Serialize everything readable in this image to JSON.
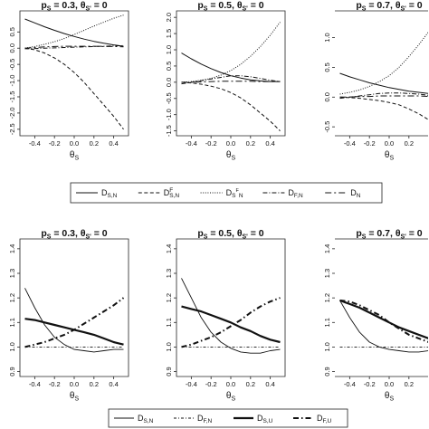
{
  "chart_data": [
    {
      "type": "line",
      "title": "p_S = 0.3, θ_S' = 0",
      "title_html": [
        "p",
        "S",
        " = 0.3, θ",
        "S'",
        " = 0"
      ],
      "xlabel": "θS",
      "xlim": [
        -0.55,
        0.55
      ],
      "ylim": [
        -2.7,
        1.15
      ],
      "xticks": [
        -0.4,
        -0.2,
        0.0,
        0.2,
        0.4
      ],
      "xticklabels": [
        "-0.4",
        "-0.2",
        "0.0",
        "0.2",
        "0.4"
      ],
      "yticks": [
        -2.5,
        -2.0,
        -1.5,
        -1.0,
        -0.5,
        0.0,
        0.5
      ],
      "yticklabels": [
        "-2.5",
        "-2.0",
        "-1.5",
        "-1.0",
        "-0.5",
        "0.0",
        "0.5"
      ],
      "x": [
        -0.5,
        -0.4,
        -0.3,
        -0.2,
        -0.1,
        0.0,
        0.1,
        0.2,
        0.3,
        0.4,
        0.5
      ],
      "series": [
        {
          "name": "D_S,N",
          "style": "solid",
          "values": [
            0.9,
            0.78,
            0.66,
            0.55,
            0.45,
            0.36,
            0.28,
            0.21,
            0.15,
            0.1,
            0.06
          ]
        },
        {
          "name": "D^F_S,N",
          "style": "dashed",
          "values": [
            0.0,
            -0.05,
            -0.15,
            -0.3,
            -0.5,
            -0.75,
            -1.05,
            -1.4,
            -1.75,
            -2.1,
            -2.5
          ]
        },
        {
          "name": "D_S^F_N",
          "style": "dotted",
          "values": [
            0.0,
            0.05,
            0.12,
            0.2,
            0.3,
            0.42,
            0.55,
            0.68,
            0.8,
            0.92,
            1.02
          ]
        },
        {
          "name": "D_F,N",
          "style": "dotdash",
          "values": [
            -0.02,
            -0.01,
            0.0,
            0.01,
            0.02,
            0.03,
            0.04,
            0.05,
            0.06,
            0.07,
            0.08
          ]
        },
        {
          "name": "D_N",
          "style": "longdash",
          "values": [
            0.0,
            0.02,
            0.04,
            0.05,
            0.06,
            0.06,
            0.06,
            0.06,
            0.05,
            0.05,
            0.04
          ]
        }
      ]
    },
    {
      "type": "line",
      "title": "p_S = 0.5, θ_S' = 0",
      "title_html": [
        "p",
        "S",
        " = 0.5, θ",
        "S'",
        " = 0"
      ],
      "xlabel": "θS",
      "xlim": [
        -0.55,
        0.55
      ],
      "ylim": [
        -1.65,
        2.2
      ],
      "xticks": [
        -0.4,
        -0.2,
        0.0,
        0.2,
        0.4
      ],
      "xticklabels": [
        "-0.4",
        "-0.2",
        "0.0",
        "0.2",
        "0.4"
      ],
      "yticks": [
        -1.5,
        -1.0,
        -0.5,
        0.0,
        0.5,
        1.0,
        1.5,
        2.0
      ],
      "yticklabels": [
        "-1.5",
        "-1.0",
        "-0.5",
        "0.0",
        "0.5",
        "1.0",
        "1.5",
        "2.0"
      ],
      "x": [
        -0.5,
        -0.4,
        -0.3,
        -0.2,
        -0.1,
        0.0,
        0.1,
        0.2,
        0.3,
        0.4,
        0.5
      ],
      "series": [
        {
          "name": "D_S,N",
          "style": "solid",
          "values": [
            0.9,
            0.72,
            0.56,
            0.42,
            0.3,
            0.2,
            0.13,
            0.07,
            0.04,
            0.02,
            0.02
          ]
        },
        {
          "name": "D^F_S,N",
          "style": "dashed",
          "values": [
            0.0,
            -0.02,
            -0.06,
            -0.12,
            -0.2,
            -0.32,
            -0.48,
            -0.7,
            -0.95,
            -1.2,
            -1.5
          ]
        },
        {
          "name": "D_S^F_N",
          "style": "dotted",
          "values": [
            0.0,
            0.02,
            0.06,
            0.12,
            0.22,
            0.36,
            0.55,
            0.8,
            1.1,
            1.45,
            1.85
          ]
        },
        {
          "name": "D_F,N",
          "style": "dotdash",
          "values": [
            -0.05,
            0.0,
            0.05,
            0.1,
            0.15,
            0.2,
            0.2,
            0.17,
            0.12,
            0.06,
            0.02
          ]
        },
        {
          "name": "D_N",
          "style": "longdash",
          "values": [
            0.0,
            0.0,
            0.01,
            0.02,
            0.03,
            0.03,
            0.03,
            0.03,
            0.02,
            0.02,
            0.02
          ]
        }
      ]
    },
    {
      "type": "line",
      "title": "p_S = 0.7, θ_S' = 0",
      "title_html": [
        "p",
        "S",
        " = 0.7, θ",
        "S'",
        " = 0"
      ],
      "xlabel": "θS",
      "xlim": [
        -0.55,
        0.55
      ],
      "ylim": [
        -0.65,
        1.45
      ],
      "xticks": [
        -0.4,
        -0.2,
        0.0,
        0.2,
        0.4
      ],
      "xticklabels": [
        "-0.4",
        "-0.2",
        "0.0",
        "0.2",
        "0.4"
      ],
      "yticks": [
        -0.5,
        0.0,
        0.5,
        1.0
      ],
      "yticklabels": [
        "-0.5",
        "0.0",
        "0.5",
        "1.0"
      ],
      "x": [
        -0.5,
        -0.4,
        -0.3,
        -0.2,
        -0.1,
        0.0,
        0.1,
        0.2,
        0.3,
        0.4,
        0.5
      ],
      "series": [
        {
          "name": "D_S,N",
          "style": "solid",
          "values": [
            0.4,
            0.34,
            0.29,
            0.24,
            0.2,
            0.16,
            0.13,
            0.1,
            0.08,
            0.06,
            0.05
          ]
        },
        {
          "name": "D^F_S,N",
          "style": "dashed",
          "values": [
            0.0,
            -0.01,
            -0.02,
            -0.04,
            -0.06,
            -0.09,
            -0.13,
            -0.2,
            -0.28,
            -0.38,
            -0.5
          ]
        },
        {
          "name": "D_S^F_N",
          "style": "dotted",
          "values": [
            0.05,
            0.08,
            0.12,
            0.18,
            0.26,
            0.36,
            0.5,
            0.68,
            0.88,
            1.1,
            1.35
          ]
        },
        {
          "name": "D_F,N",
          "style": "dotdash",
          "values": [
            -0.02,
            0.0,
            0.02,
            0.04,
            0.06,
            0.07,
            0.07,
            0.06,
            0.05,
            0.03,
            0.02
          ]
        },
        {
          "name": "D_N",
          "style": "longdash",
          "values": [
            0.0,
            0.0,
            0.01,
            0.01,
            0.02,
            0.02,
            0.02,
            0.02,
            0.02,
            0.01,
            0.01
          ]
        }
      ]
    },
    {
      "type": "line",
      "title": "p_S = 0.3, θ_S' = 0",
      "title_html": [
        "p",
        "S",
        " = 0.3, θ",
        "S'",
        " = 0"
      ],
      "xlabel": "θS",
      "xlim": [
        -0.55,
        0.55
      ],
      "ylim": [
        0.88,
        1.44
      ],
      "xticks": [
        -0.4,
        -0.2,
        0.0,
        0.2,
        0.4
      ],
      "xticklabels": [
        "-0.4",
        "-0.2",
        "0.0",
        "0.2",
        "0.4"
      ],
      "yticks": [
        0.9,
        1.0,
        1.1,
        1.2,
        1.3,
        1.4
      ],
      "yticklabels": [
        "0.9",
        "1.0",
        "1.1",
        "1.2",
        "1.3",
        "1.4"
      ],
      "x": [
        -0.5,
        -0.4,
        -0.3,
        -0.2,
        -0.1,
        0.0,
        0.1,
        0.2,
        0.3,
        0.4,
        0.5
      ],
      "series": [
        {
          "name": "D_S,N",
          "style": "thin-solid",
          "values": [
            1.24,
            1.16,
            1.09,
            1.04,
            1.01,
            0.99,
            0.985,
            0.98,
            0.985,
            0.99,
            0.99
          ]
        },
        {
          "name": "D_F,N",
          "style": "dotdash-thin",
          "values": [
            1.0,
            1.0,
            1.0,
            1.0,
            1.0,
            1.0,
            1.0,
            1.0,
            1.0,
            1.0,
            1.0
          ]
        },
        {
          "name": "D_S,U",
          "style": "thick-solid",
          "values": [
            1.115,
            1.11,
            1.1,
            1.09,
            1.08,
            1.07,
            1.06,
            1.05,
            1.035,
            1.02,
            1.01
          ]
        },
        {
          "name": "D_F,U",
          "style": "thick-dotdash",
          "values": [
            1.0,
            1.01,
            1.02,
            1.035,
            1.05,
            1.07,
            1.095,
            1.12,
            1.145,
            1.17,
            1.2
          ]
        }
      ]
    },
    {
      "type": "line",
      "title": "p_S = 0.5, θ_S' = 0",
      "title_html": [
        "p",
        "S",
        " = 0.5, θ",
        "S'",
        " = 0"
      ],
      "xlabel": "θS",
      "xlim": [
        -0.55,
        0.55
      ],
      "ylim": [
        0.88,
        1.44
      ],
      "xticks": [
        -0.4,
        -0.2,
        0.0,
        0.2,
        0.4
      ],
      "xticklabels": [
        "-0.4",
        "-0.2",
        "0.0",
        "0.2",
        "0.4"
      ],
      "yticks": [
        0.9,
        1.0,
        1.1,
        1.2,
        1.3,
        1.4
      ],
      "yticklabels": [
        "0.9",
        "1.0",
        "1.1",
        "1.2",
        "1.3",
        "1.4"
      ],
      "x": [
        -0.5,
        -0.4,
        -0.3,
        -0.2,
        -0.1,
        0.0,
        0.1,
        0.2,
        0.3,
        0.4,
        0.5
      ],
      "series": [
        {
          "name": "D_S,N",
          "style": "thin-solid",
          "values": [
            1.28,
            1.2,
            1.12,
            1.06,
            1.02,
            0.995,
            0.98,
            0.975,
            0.975,
            0.985,
            0.99
          ]
        },
        {
          "name": "D_F,N",
          "style": "dotdash-thin",
          "values": [
            1.0,
            1.0,
            1.0,
            1.0,
            1.0,
            1.0,
            1.0,
            1.0,
            1.0,
            1.0,
            1.0
          ]
        },
        {
          "name": "D_S,U",
          "style": "thick-solid",
          "values": [
            1.165,
            1.155,
            1.145,
            1.13,
            1.115,
            1.1,
            1.08,
            1.065,
            1.045,
            1.03,
            1.02
          ]
        },
        {
          "name": "D_F,U",
          "style": "thick-dotdash",
          "values": [
            1.0,
            1.01,
            1.025,
            1.04,
            1.06,
            1.085,
            1.11,
            1.14,
            1.165,
            1.185,
            1.2
          ]
        }
      ]
    },
    {
      "type": "line",
      "title": "p_S = 0.7, θ_S' = 0",
      "title_html": [
        "p",
        "S",
        " = 0.7, θ",
        "S'",
        " = 0"
      ],
      "xlabel": "θS",
      "xlim": [
        -0.55,
        0.55
      ],
      "ylim": [
        0.88,
        1.44
      ],
      "xticks": [
        -0.4,
        -0.2,
        0.0,
        0.2,
        0.4
      ],
      "xticklabels": [
        "-0.4",
        "-0.2",
        "0.0",
        "0.2",
        "0.4"
      ],
      "yticks": [
        0.9,
        1.0,
        1.1,
        1.2,
        1.3,
        1.4
      ],
      "yticklabels": [
        "0.9",
        "1.0",
        "1.1",
        "1.2",
        "1.3",
        "1.4"
      ],
      "x": [
        -0.5,
        -0.4,
        -0.3,
        -0.2,
        -0.1,
        0.0,
        0.1,
        0.2,
        0.3,
        0.4,
        0.5
      ],
      "series": [
        {
          "name": "D_S,N",
          "style": "thin-solid",
          "values": [
            1.19,
            1.12,
            1.06,
            1.02,
            1.0,
            0.99,
            0.985,
            0.98,
            0.98,
            0.985,
            0.99
          ]
        },
        {
          "name": "D_F,N",
          "style": "dotdash-thin",
          "values": [
            1.0,
            1.0,
            1.0,
            1.0,
            1.0,
            1.0,
            1.0,
            1.0,
            1.0,
            1.0,
            1.0
          ]
        },
        {
          "name": "D_S,U",
          "style": "thick-solid",
          "values": [
            1.19,
            1.175,
            1.16,
            1.14,
            1.12,
            1.1,
            1.08,
            1.065,
            1.05,
            1.035,
            1.02
          ]
        },
        {
          "name": "D_F,U",
          "style": "thick-dotdash",
          "values": [
            1.19,
            1.185,
            1.17,
            1.15,
            1.13,
            1.1,
            1.075,
            1.05,
            1.035,
            1.02,
            1.0
          ]
        }
      ]
    }
  ],
  "legend_top": {
    "entries": [
      {
        "main": "D",
        "sub": "S,N",
        "sup": "",
        "style": "solid"
      },
      {
        "main": "D",
        "sub": "S,N",
        "sup": "F",
        "style": "dashed"
      },
      {
        "main": "D",
        "sub": "S",
        "sup": "",
        "extra_sup": "F",
        "extra_sub": "N",
        "style": "dotted"
      },
      {
        "main": "D",
        "sub": "F,N",
        "sup": "",
        "style": "dotdash"
      },
      {
        "main": "D",
        "sub": "N",
        "sup": "",
        "style": "longdash"
      }
    ]
  },
  "legend_bottom": {
    "entries": [
      {
        "main": "D",
        "sub": "S,N",
        "style": "thin-solid"
      },
      {
        "main": "D",
        "sub": "F,N",
        "style": "dotdash-thin"
      },
      {
        "main": "D",
        "sub": "S,U",
        "style": "thick-solid"
      },
      {
        "main": "D",
        "sub": "F,U",
        "style": "thick-dotdash"
      }
    ]
  }
}
